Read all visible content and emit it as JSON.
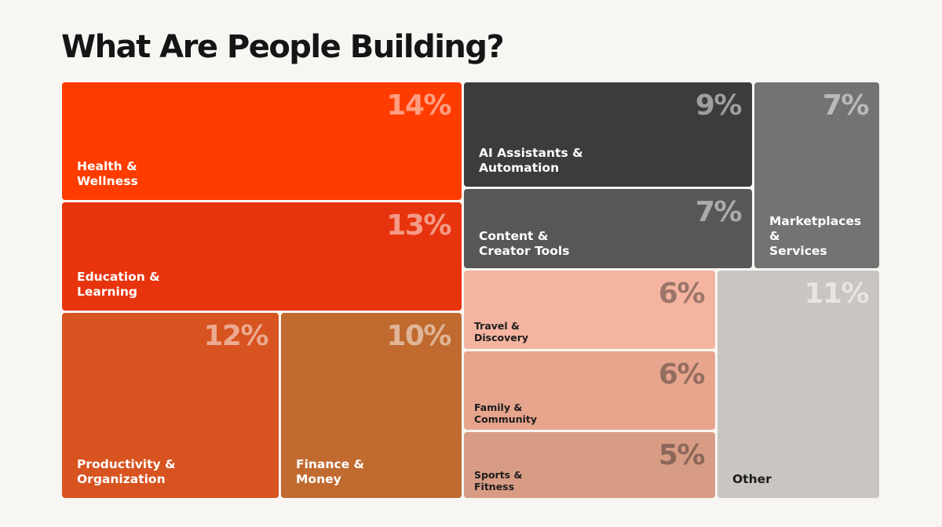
{
  "page": {
    "title": "What Are People Building?"
  },
  "chart_data": {
    "type": "treemap",
    "title": "What Are People Building?",
    "unit": "%",
    "items": [
      {
        "key": "health",
        "label": "Health &\nWellness",
        "value": 14,
        "display": "14%",
        "color": "#ff3c00",
        "text_color": "#ffffff",
        "pct_color": "rgba(255,255,255,0.5)"
      },
      {
        "key": "education",
        "label": "Education &\nLearning",
        "value": 13,
        "display": "13%",
        "color": "#e8340e",
        "text_color": "#ffffff",
        "pct_color": "rgba(255,255,255,0.5)"
      },
      {
        "key": "productivity",
        "label": "Productivity &\nOrganization",
        "value": 12,
        "display": "12%",
        "color": "#d7531f",
        "text_color": "#ffffff",
        "pct_color": "rgba(255,255,255,0.5)"
      },
      {
        "key": "finance",
        "label": "Finance &\nMoney",
        "value": 10,
        "display": "10%",
        "color": "#c06a2f",
        "text_color": "#ffffff",
        "pct_color": "rgba(255,255,255,0.5)"
      },
      {
        "key": "ai",
        "label": "AI Assistants &\nAutomation",
        "value": 9,
        "display": "9%",
        "color": "#3c3c3c",
        "text_color": "#ffffff",
        "pct_color": "rgba(255,255,255,0.5)"
      },
      {
        "key": "content",
        "label": "Content &\nCreator Tools",
        "value": 7,
        "display": "7%",
        "color": "#575757",
        "text_color": "#ffffff",
        "pct_color": "rgba(255,255,255,0.5)"
      },
      {
        "key": "marketplaces",
        "label": "Marketplaces\n&\nServices",
        "value": 7,
        "display": "7%",
        "color": "#737373",
        "text_color": "#ffffff",
        "pct_color": "rgba(255,255,255,0.5)"
      },
      {
        "key": "travel",
        "label": "Travel &\nDiscovery",
        "value": 6,
        "display": "6%",
        "color": "#f4b4a0",
        "text_color": "#1c1c1c",
        "pct_color": "rgba(30,30,30,0.42)"
      },
      {
        "key": "family",
        "label": "Family &\nCommunity",
        "value": 6,
        "display": "6%",
        "color": "#e7a58e",
        "text_color": "#1c1c1c",
        "pct_color": "rgba(30,30,30,0.42)"
      },
      {
        "key": "sports",
        "label": "Sports &\nFitness",
        "value": 5,
        "display": "5%",
        "color": "#d89c84",
        "text_color": "#1c1c1c",
        "pct_color": "rgba(30,30,30,0.42)"
      },
      {
        "key": "other",
        "label": "Other",
        "value": 11,
        "display": "11%",
        "color": "#c8c5c2",
        "text_color": "#1c1c1c",
        "pct_color": "rgba(255,255,255,0.55)"
      }
    ]
  }
}
